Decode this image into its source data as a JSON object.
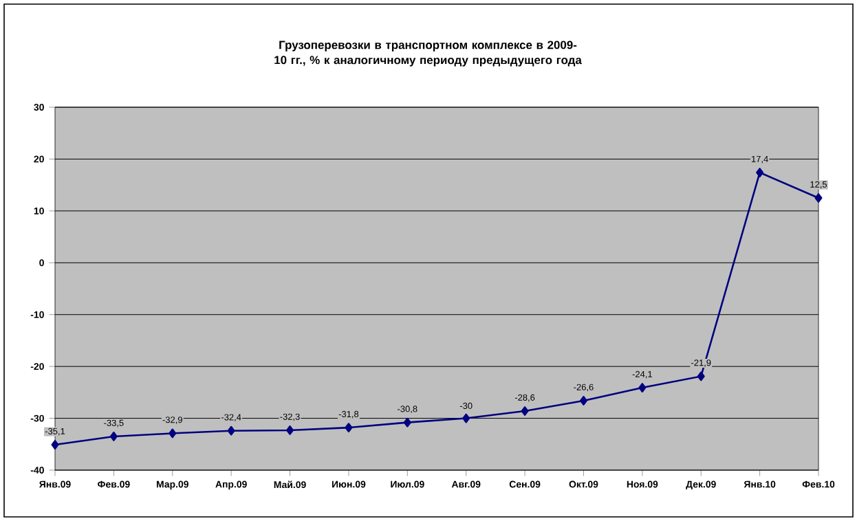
{
  "chart_data": {
    "type": "line",
    "title": "Грузоперевозки в транспортном комплексе в 2009-10 гг., %  к аналогичному периоду предыдущего года",
    "categories": [
      "Янв.09",
      "Фев.09",
      "Мар.09",
      "Апр.09",
      "Май.09",
      "Июн.09",
      "Июл.09",
      "Авг.09",
      "Сен.09",
      "Окт.09",
      "Ноя.09",
      "Дек.09",
      "Янв.10",
      "Фев.10"
    ],
    "series": [
      {
        "color": "#000080",
        "values": [
          -35.1,
          -33.5,
          -32.9,
          -32.4,
          -32.3,
          -31.8,
          -30.8,
          -30,
          -28.6,
          -26.6,
          -24.1,
          -21.9,
          17.4,
          12.5
        ],
        "value_labels": [
          "-35,1",
          "-33,5",
          "-32,9",
          "-32,4",
          "-32,3",
          "-31,8",
          "-30,8",
          "-30",
          "-28,6",
          "-26,6",
          "-24,1",
          "-21,9",
          "17,4",
          "12,5"
        ]
      }
    ],
    "ylim": [
      -40,
      30
    ],
    "yticks": [
      -40,
      -30,
      -20,
      -10,
      0,
      10,
      20,
      30
    ],
    "grid": "y",
    "marker": "diamond",
    "line_style": "solid"
  }
}
